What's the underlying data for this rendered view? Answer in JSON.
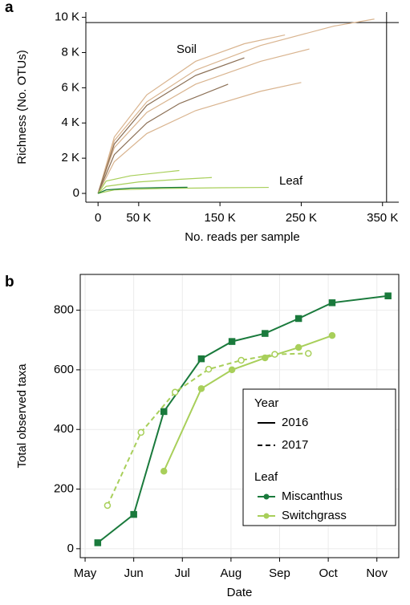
{
  "chart_data": [
    {
      "type": "line",
      "panel": "a",
      "xlabel": "No. reads per sample",
      "ylabel": "Richness (No. OTUs)",
      "xlim": [
        -15000,
        370000
      ],
      "ylim": [
        -500,
        10300
      ],
      "xticks": [
        0,
        {
          "value": 50000,
          "label": "50 K"
        },
        {
          "value": 150000,
          "label": "150 K"
        },
        {
          "value": 250000,
          "label": "250 K"
        },
        {
          "value": 350000,
          "label": "350 K"
        }
      ],
      "yticks": [
        0,
        {
          "value": 2000,
          "label": "2 K"
        },
        {
          "value": 4000,
          "label": "4 K"
        },
        {
          "value": 6000,
          "label": "6 K"
        },
        {
          "value": 8000,
          "label": "8 K"
        },
        {
          "value": 10000,
          "label": "10 K"
        }
      ],
      "hline": 9700,
      "vline": 355000,
      "annotations": [
        "Soil",
        "Leaf"
      ],
      "series": [
        {
          "color": "#d9b48f",
          "x": [
            0,
            20000,
            60000,
            120000,
            200000,
            290000,
            340000
          ],
          "values": [
            0,
            3000,
            5200,
            7000,
            8400,
            9500,
            9900
          ]
        },
        {
          "color": "#d9b48f",
          "x": [
            0,
            20000,
            60000,
            120000,
            200000,
            260000
          ],
          "values": [
            0,
            2600,
            4600,
            6200,
            7500,
            8200
          ]
        },
        {
          "color": "#d9b48f",
          "x": [
            0,
            20000,
            60000,
            120000,
            200000,
            250000
          ],
          "values": [
            0,
            1800,
            3400,
            4700,
            5800,
            6300
          ]
        },
        {
          "color": "#d9b48f",
          "x": [
            0,
            20000,
            60000,
            120000,
            180000,
            230000
          ],
          "values": [
            0,
            3200,
            5600,
            7500,
            8500,
            9000
          ]
        },
        {
          "color": "#8b6f55",
          "x": [
            0,
            20000,
            60000,
            120000,
            180000
          ],
          "values": [
            0,
            2800,
            5000,
            6700,
            7700
          ]
        },
        {
          "color": "#8b6f55",
          "x": [
            0,
            20000,
            60000,
            100000,
            160000
          ],
          "values": [
            0,
            2200,
            4000,
            5100,
            6200
          ]
        },
        {
          "color": "#a8cf5a",
          "x": [
            0,
            10000,
            40000,
            80000,
            100000
          ],
          "values": [
            0,
            700,
            1000,
            1200,
            1300
          ]
        },
        {
          "color": "#a8cf5a",
          "x": [
            0,
            10000,
            50000,
            100000,
            140000
          ],
          "values": [
            0,
            400,
            650,
            800,
            900
          ]
        },
        {
          "color": "#a8cf5a",
          "x": [
            0,
            20000,
            80000,
            150000,
            210000
          ],
          "values": [
            0,
            200,
            280,
            320,
            340
          ]
        },
        {
          "color": "#1a7a3c",
          "x": [
            0,
            10000,
            40000,
            80000,
            110000
          ],
          "values": [
            0,
            200,
            300,
            330,
            350
          ]
        }
      ]
    },
    {
      "type": "line",
      "panel": "b",
      "xlabel": "Date",
      "ylabel": "Total observed taxa",
      "xlim": [
        4.9,
        11.45
      ],
      "ylim": [
        -30,
        920
      ],
      "grid": true,
      "xticks": [
        {
          "value": 5,
          "label": "May"
        },
        {
          "value": 6,
          "label": "Jun"
        },
        {
          "value": 7,
          "label": "Jul"
        },
        {
          "value": 8,
          "label": "Aug"
        },
        {
          "value": 9,
          "label": "Sep"
        },
        {
          "value": 10,
          "label": "Oct"
        },
        {
          "value": 11,
          "label": "Nov"
        }
      ],
      "yticks": [
        0,
        200,
        400,
        600,
        800
      ],
      "legend_year_title": "Year",
      "line_styles": [
        {
          "label": "2016",
          "dashed": false
        },
        {
          "label": "2017",
          "dashed": true
        }
      ],
      "legend_color_title": "Leaf",
      "groups": [
        {
          "name": "Miscanthus",
          "color": "#1a7a3c",
          "marker": "square"
        },
        {
          "name": "Switchgrass",
          "color": "#a8cf5a",
          "marker": "circle"
        }
      ],
      "series": [
        {
          "group": 0,
          "style": 0,
          "x": [
            5.26,
            6.0,
            6.62,
            7.39,
            8.02,
            8.7,
            9.39,
            10.08,
            11.23
          ],
          "values": [
            20,
            115,
            460,
            637,
            695,
            722,
            772,
            825,
            848
          ]
        },
        {
          "group": 1,
          "style": 0,
          "x": [
            6.62,
            7.39,
            8.02,
            8.7,
            9.39,
            10.08
          ],
          "values": [
            260,
            537,
            600,
            640,
            675,
            715
          ]
        },
        {
          "group": 1,
          "style": 1,
          "x": [
            5.46,
            6.15,
            6.85,
            7.54,
            8.21,
            8.9,
            9.59
          ],
          "values": [
            145,
            390,
            525,
            602,
            632,
            652,
            655
          ]
        }
      ]
    }
  ]
}
